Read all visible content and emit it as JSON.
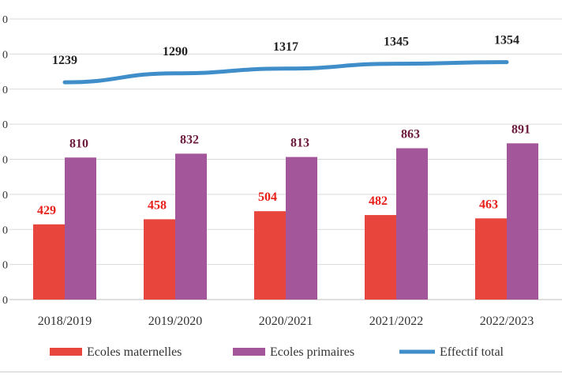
{
  "chart_data": {
    "type": "bar",
    "categories": [
      "2018/2019",
      "2019/2020",
      "2020/2021",
      "2021/2022",
      "2022/2023"
    ],
    "series": [
      {
        "name": "Ecoles maternelles",
        "type": "bar",
        "color": "#e8453c",
        "label_color": "#e8201a",
        "values": [
          429,
          458,
          504,
          482,
          463
        ]
      },
      {
        "name": "Ecoles primaires",
        "type": "bar",
        "color": "#a4569a",
        "label_color": "#6b1a3c",
        "values": [
          810,
          832,
          813,
          863,
          891
        ]
      },
      {
        "name": "Effectif total",
        "type": "line",
        "color": "#3f8ec9",
        "label_color": "#222222",
        "values": [
          1239,
          1290,
          1317,
          1345,
          1354
        ]
      }
    ],
    "y_ticks": [
      "0",
      "0",
      "0",
      "0",
      "0",
      "0",
      "0",
      "0",
      "0"
    ],
    "ylim": [
      0,
      1600
    ],
    "grid": true,
    "legend": "bottom"
  }
}
